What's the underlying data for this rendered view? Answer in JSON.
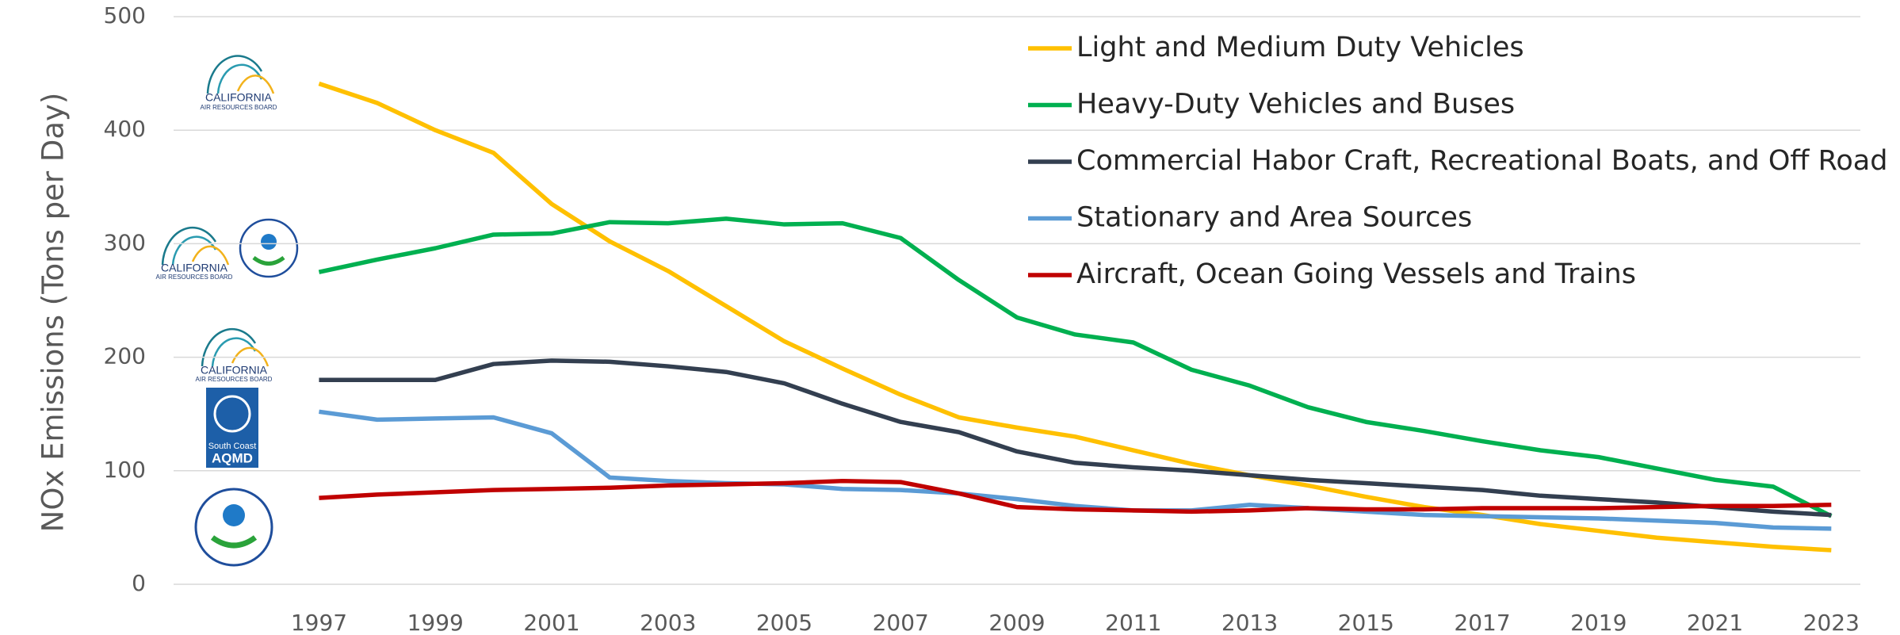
{
  "chart_data": {
    "type": "line",
    "y_label": "NOx Emissions  (Tons per Day)",
    "x": [
      1997,
      1998,
      1999,
      2000,
      2001,
      2002,
      2003,
      2004,
      2005,
      2006,
      2007,
      2008,
      2009,
      2010,
      2011,
      2012,
      2013,
      2014,
      2015,
      2016,
      2017,
      2018,
      2019,
      2020,
      2021,
      2022,
      2023
    ],
    "xlim": [
      1994.5,
      2023.5
    ],
    "xticks": [
      1997,
      1999,
      2001,
      2003,
      2005,
      2007,
      2009,
      2011,
      2013,
      2015,
      2017,
      2019,
      2021,
      2023
    ],
    "ylim": [
      0,
      500
    ],
    "yticks": [
      0,
      100,
      200,
      300,
      400,
      500
    ],
    "grid": true,
    "legend": "upper right",
    "series": [
      {
        "name": "Light and Medium Duty Vehicles",
        "color": "#FFC000",
        "values": [
          441,
          424,
          400,
          380,
          335,
          302,
          276,
          245,
          214,
          190,
          167,
          147,
          138,
          130,
          118,
          106,
          96,
          87,
          77,
          68,
          61,
          53,
          47,
          41,
          37,
          33,
          30
        ]
      },
      {
        "name": "Heavy-Duty Vehicles and Buses",
        "color": "#00B050",
        "values": [
          275,
          286,
          296,
          308,
          309,
          319,
          318,
          322,
          317,
          318,
          305,
          268,
          235,
          220,
          213,
          189,
          175,
          156,
          143,
          135,
          126,
          118,
          112,
          102,
          92,
          86,
          60
        ]
      },
      {
        "name": "Commercial Habor Craft, Recreational Boats, and Off Road",
        "color": "#333F50",
        "values": [
          180,
          180,
          180,
          194,
          197,
          196,
          192,
          187,
          177,
          159,
          143,
          134,
          117,
          107,
          103,
          100,
          96,
          92,
          89,
          86,
          83,
          78,
          75,
          72,
          68,
          64,
          61
        ]
      },
      {
        "name": "Stationary and Area Sources",
        "color": "#5B9BD5",
        "values": [
          152,
          145,
          146,
          147,
          133,
          94,
          91,
          89,
          88,
          84,
          83,
          80,
          75,
          69,
          65,
          65,
          70,
          67,
          64,
          61,
          60,
          59,
          58,
          56,
          54,
          50,
          49
        ]
      },
      {
        "name": "Aircraft, Ocean Going Vessels and Trains",
        "color": "#C00000",
        "values": [
          76,
          79,
          81,
          83,
          84,
          85,
          87,
          88,
          89,
          91,
          90,
          80,
          68,
          66,
          65,
          64,
          65,
          67,
          66,
          66,
          67,
          67,
          67,
          68,
          69,
          69,
          70
        ]
      }
    ],
    "annotations": [
      "CALIFORNIA",
      "AIR RESOURCES BOARD",
      "CALIFORNIA",
      "AIR RESOURCES BOARD",
      "CALIFORNIA",
      "AIR RESOURCES BOARD",
      "South Coast",
      "AQMD"
    ]
  }
}
